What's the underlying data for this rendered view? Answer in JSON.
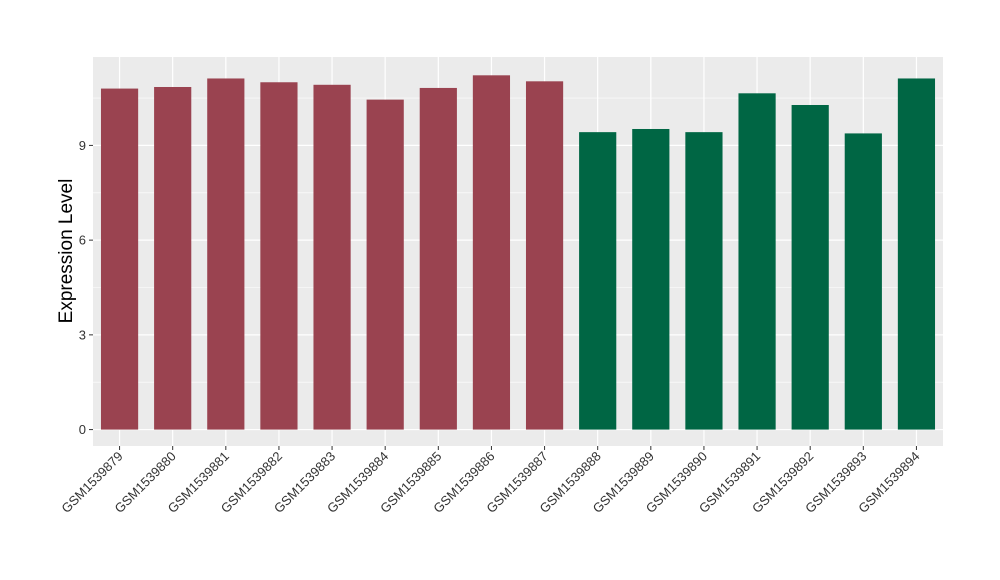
{
  "chart_data": {
    "type": "bar",
    "title": "",
    "xlabel": "",
    "ylabel": "Expression Level",
    "ylim": [
      -0.52,
      11.8
    ],
    "yticks": [
      0,
      3,
      6,
      9
    ],
    "grid": true,
    "categories": [
      "GSM1539879",
      "GSM1539880",
      "GSM1539881",
      "GSM1539882",
      "GSM1539883",
      "GSM1539884",
      "GSM1539885",
      "GSM1539886",
      "GSM1539887",
      "GSM1539888",
      "GSM1539889",
      "GSM1539890",
      "GSM1539891",
      "GSM1539892",
      "GSM1539893",
      "GSM1539894"
    ],
    "values": [
      10.8,
      10.85,
      11.12,
      11.0,
      10.92,
      10.45,
      10.82,
      11.22,
      11.03,
      9.42,
      9.52,
      9.42,
      10.65,
      10.28,
      9.38,
      11.12
    ],
    "groups": [
      "a",
      "a",
      "a",
      "a",
      "a",
      "a",
      "a",
      "a",
      "a",
      "b",
      "b",
      "b",
      "b",
      "b",
      "b",
      "b"
    ],
    "group_colors": {
      "a": "#9A4350",
      "b": "#006644"
    },
    "panel_color": "#EBEBEB",
    "grid_color": "#FFFFFF"
  }
}
